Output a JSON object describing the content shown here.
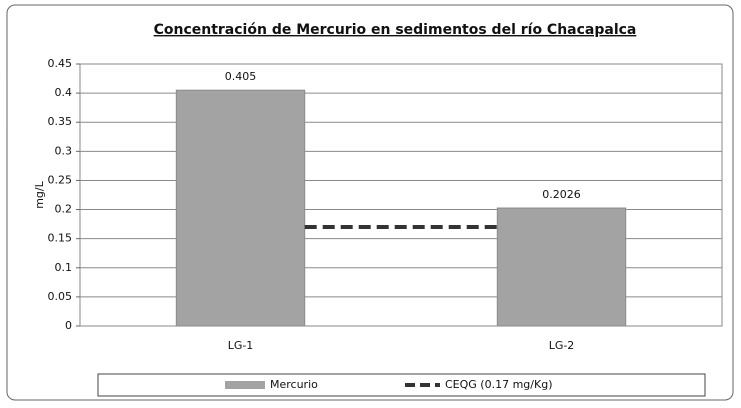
{
  "chart_data": {
    "type": "bar",
    "title": "Concentración de Mercurio en sedimentos del río Chacapalca",
    "y_label": "mg/L",
    "categories": [
      "LG-1",
      "LG-2"
    ],
    "series": [
      {
        "name": "Mercurio",
        "type": "bar",
        "color": "#a3a3a3",
        "values": [
          0.405,
          0.2026
        ]
      },
      {
        "name": "CEQG (0.17 mg/Kg)",
        "type": "line",
        "dashed": true,
        "color": "#333333",
        "values": [
          0.17,
          0.17
        ]
      }
    ],
    "ylim": [
      0,
      0.45
    ],
    "yticks": [
      0,
      0.05,
      0.1,
      0.15,
      0.2,
      0.25,
      0.3,
      0.35,
      0.4,
      0.45
    ],
    "grid": true,
    "legend": "bottom"
  }
}
